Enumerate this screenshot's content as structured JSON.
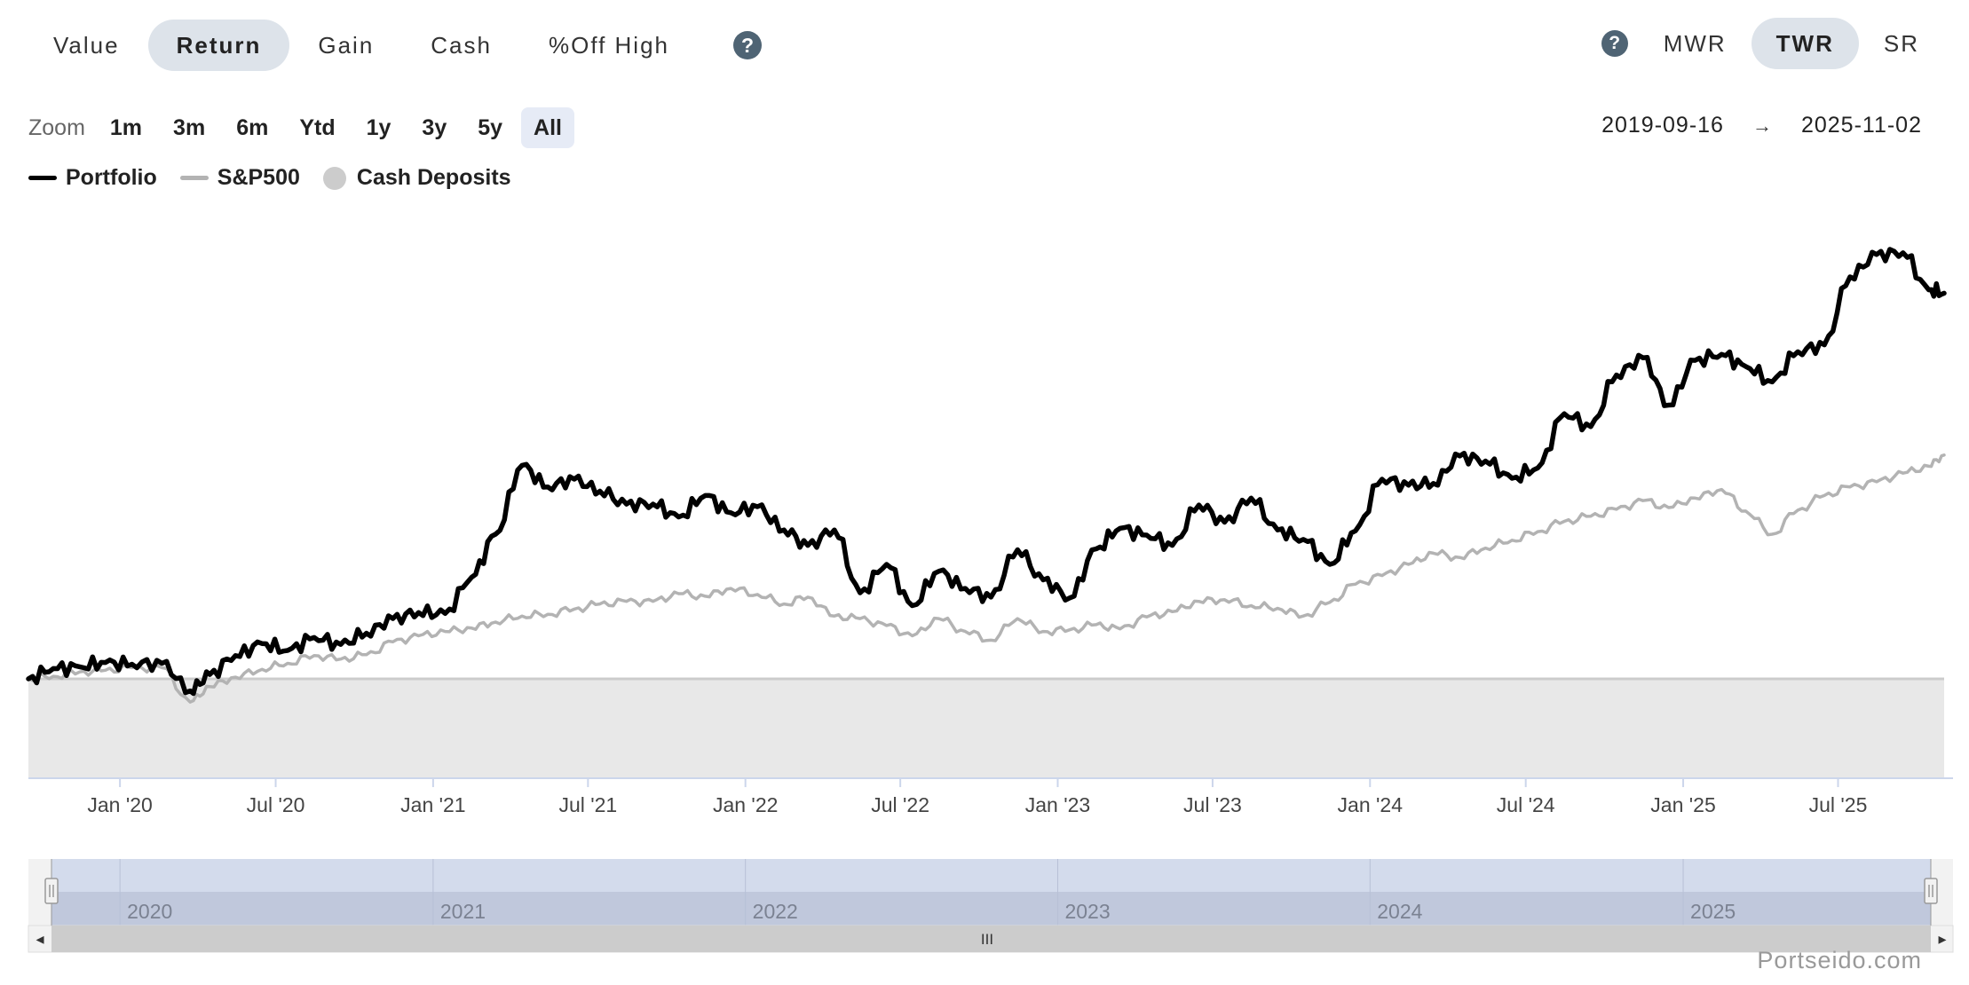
{
  "metric_tabs": {
    "items": [
      {
        "label": "Value",
        "active": false
      },
      {
        "label": "Return",
        "active": true
      },
      {
        "label": "Gain",
        "active": false
      },
      {
        "label": "Cash",
        "active": false
      },
      {
        "label": "%Off High",
        "active": false
      }
    ],
    "help_icon": "question-circle-icon",
    "help_glyph": "?"
  },
  "method_tabs": {
    "help_icon": "question-circle-icon",
    "help_glyph": "?",
    "items": [
      {
        "label": "MWR",
        "active": false
      },
      {
        "label": "TWR",
        "active": true
      },
      {
        "label": "SR",
        "active": false
      }
    ]
  },
  "zoom": {
    "label": "Zoom",
    "options": [
      {
        "label": "1m",
        "active": false
      },
      {
        "label": "3m",
        "active": false
      },
      {
        "label": "6m",
        "active": false
      },
      {
        "label": "Ytd",
        "active": false
      },
      {
        "label": "1y",
        "active": false
      },
      {
        "label": "3y",
        "active": false
      },
      {
        "label": "5y",
        "active": false
      },
      {
        "label": "All",
        "active": true
      }
    ]
  },
  "date_range": {
    "start": "2019-09-16",
    "arrow": "→",
    "end": "2025-11-02"
  },
  "legend": [
    {
      "label": "Portfolio",
      "symbol": "line",
      "color": "#000000"
    },
    {
      "label": "S&P500",
      "symbol": "line",
      "color": "#b3b3b3"
    },
    {
      "label": "Cash Deposits",
      "symbol": "dot",
      "color": "#cccccc"
    }
  ],
  "navigator": {
    "years": [
      "2020",
      "2021",
      "2022",
      "2023",
      "2024",
      "2025"
    ],
    "scroll_left_glyph": "◂",
    "scroll_right_glyph": "▸",
    "scroll_thumb_glyph": "III"
  },
  "credit": "Portseido.com",
  "chart_data": {
    "type": "line",
    "x_tick_labels": [
      "Jan '20",
      "Jul '20",
      "Jan '21",
      "Jul '21",
      "Jan '22",
      "Jul '22",
      "Jan '23",
      "Jul '23",
      "Jan '24",
      "Jul '24",
      "Jan '25",
      "Jul '25"
    ],
    "x_tick_dates": [
      "2020-01-01",
      "2020-07-01",
      "2021-01-01",
      "2021-07-01",
      "2022-01-01",
      "2022-07-01",
      "2023-01-01",
      "2023-07-01",
      "2024-01-01",
      "2024-07-01",
      "2025-01-01",
      "2025-07-01"
    ],
    "x_range": [
      "2019-09-16",
      "2025-11-02"
    ],
    "y_axis_labels": "none",
    "grid": false,
    "legend_position": "top-left",
    "series": [
      {
        "name": "Portfolio",
        "color": "#000000",
        "x": [
          "2019-09-16",
          "2019-10-15",
          "2019-11-15",
          "2019-12-15",
          "2020-01-15",
          "2020-02-19",
          "2020-03-23",
          "2020-04-15",
          "2020-05-15",
          "2020-06-15",
          "2020-07-15",
          "2020-08-15",
          "2020-09-15",
          "2020-10-15",
          "2020-11-15",
          "2020-12-15",
          "2021-01-15",
          "2021-02-15",
          "2021-03-15",
          "2021-04-15",
          "2021-05-15",
          "2021-06-15",
          "2021-07-15",
          "2021-08-15",
          "2021-09-15",
          "2021-10-15",
          "2021-11-15",
          "2021-12-15",
          "2022-01-15",
          "2022-02-15",
          "2022-03-15",
          "2022-04-15",
          "2022-05-15",
          "2022-06-15",
          "2022-07-15",
          "2022-08-15",
          "2022-09-15",
          "2022-10-15",
          "2022-11-15",
          "2022-12-15",
          "2023-01-15",
          "2023-02-15",
          "2023-03-15",
          "2023-04-15",
          "2023-05-15",
          "2023-06-15",
          "2023-07-15",
          "2023-08-15",
          "2023-09-15",
          "2023-10-15",
          "2023-11-15",
          "2023-12-15",
          "2024-01-15",
          "2024-02-15",
          "2024-03-15",
          "2024-04-15",
          "2024-05-15",
          "2024-06-15",
          "2024-07-15",
          "2024-08-15",
          "2024-09-15",
          "2024-10-15",
          "2024-11-15",
          "2024-12-15",
          "2025-01-15",
          "2025-02-15",
          "2025-03-15",
          "2025-04-15",
          "2025-05-15",
          "2025-06-15",
          "2025-07-15",
          "2025-08-15",
          "2025-09-15",
          "2025-10-15",
          "2025-11-02"
        ],
        "values": [
          0,
          12,
          14,
          19,
          17,
          18,
          -14,
          5,
          27,
          41,
          33,
          48,
          40,
          53,
          70,
          77,
          76,
          118,
          168,
          248,
          223,
          232,
          218,
          203,
          203,
          188,
          213,
          193,
          200,
          173,
          155,
          173,
          100,
          133,
          85,
          125,
          105,
          95,
          150,
          115,
          94,
          151,
          175,
          167,
          155,
          202,
          182,
          210,
          173,
          162,
          133,
          172,
          232,
          225,
          227,
          259,
          253,
          233,
          245,
          308,
          293,
          353,
          373,
          318,
          370,
          377,
          363,
          345,
          380,
          388,
          467,
          493,
          495,
          452,
          448
        ]
      },
      {
        "name": "S&P500",
        "color": "#b3b3b3",
        "x": [
          "2019-09-16",
          "2019-10-15",
          "2019-11-15",
          "2019-12-15",
          "2020-01-15",
          "2020-02-19",
          "2020-03-23",
          "2020-04-15",
          "2020-05-15",
          "2020-06-15",
          "2020-07-15",
          "2020-08-15",
          "2020-09-15",
          "2020-10-15",
          "2020-11-15",
          "2020-12-15",
          "2021-01-15",
          "2021-02-15",
          "2021-03-15",
          "2021-04-15",
          "2021-05-15",
          "2021-06-15",
          "2021-07-15",
          "2021-08-15",
          "2021-09-15",
          "2021-10-15",
          "2021-11-15",
          "2021-12-15",
          "2022-01-15",
          "2022-02-15",
          "2022-03-15",
          "2022-04-15",
          "2022-05-15",
          "2022-06-15",
          "2022-07-15",
          "2022-08-15",
          "2022-09-15",
          "2022-10-15",
          "2022-11-15",
          "2022-12-15",
          "2023-01-15",
          "2023-02-15",
          "2023-03-15",
          "2023-04-15",
          "2023-05-15",
          "2023-06-15",
          "2023-07-15",
          "2023-08-15",
          "2023-09-15",
          "2023-10-15",
          "2023-11-15",
          "2023-12-15",
          "2024-01-15",
          "2024-02-15",
          "2024-03-15",
          "2024-04-15",
          "2024-05-15",
          "2024-06-15",
          "2024-07-15",
          "2024-08-15",
          "2024-09-15",
          "2024-10-15",
          "2024-11-15",
          "2024-12-15",
          "2025-01-15",
          "2025-02-15",
          "2025-03-15",
          "2025-04-15",
          "2025-05-15",
          "2025-06-15",
          "2025-07-15",
          "2025-08-15",
          "2025-09-15",
          "2025-10-15",
          "2025-11-02"
        ],
        "values": [
          0,
          3,
          8,
          10,
          13,
          13,
          -27,
          -9,
          2,
          11,
          18,
          27,
          23,
          28,
          43,
          50,
          55,
          59,
          66,
          73,
          75,
          81,
          87,
          90,
          90,
          99,
          96,
          105,
          98,
          87,
          95,
          73,
          70,
          62,
          50,
          70,
          55,
          45,
          70,
          55,
          57,
          63,
          58,
          72,
          78,
          90,
          92,
          85,
          82,
          73,
          89,
          110,
          120,
          133,
          146,
          141,
          152,
          161,
          171,
          183,
          189,
          197,
          207,
          199,
          210,
          220,
          195,
          168,
          196,
          213,
          223,
          229,
          239,
          247,
          260
        ]
      },
      {
        "name": "Cash Deposits",
        "type": "area",
        "color": "#cccccc",
        "x": [
          "2019-09-16",
          "2025-11-02"
        ],
        "values": [
          0,
          0
        ]
      }
    ]
  }
}
